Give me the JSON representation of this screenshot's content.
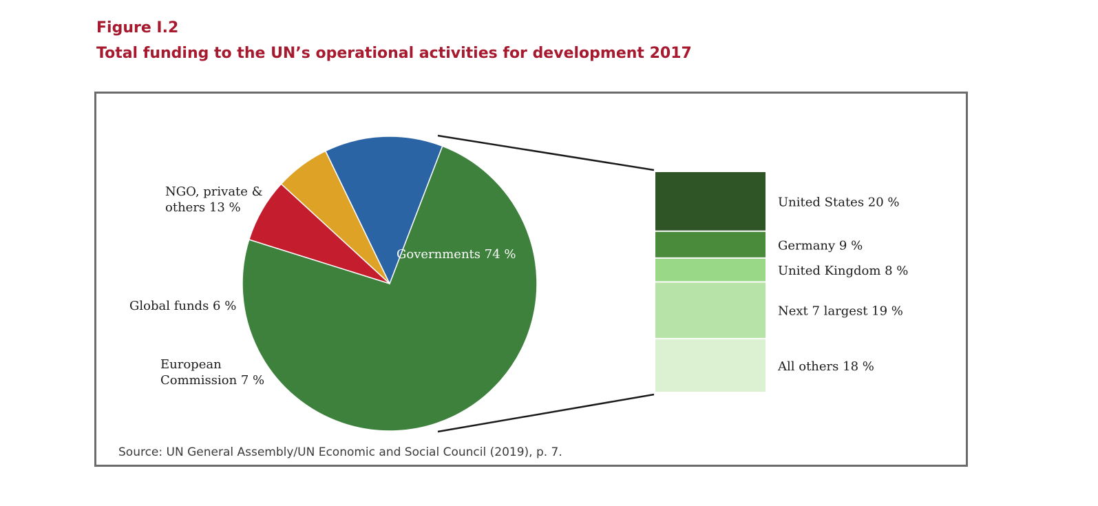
{
  "figure": {
    "label": "Figure I.2",
    "title": "Total funding to the UN’s operational activities for development 2017",
    "source": "Source: UN General Assembly/UN Economic and Social Council (2019), p. 7."
  },
  "chart_data": [
    {
      "type": "pie",
      "title": "Total funding to the UN’s operational activities for development 2017",
      "unit": "%",
      "slices": [
        {
          "name": "Governments",
          "value": 74,
          "label_lines": [
            "Governments 74 %"
          ],
          "color": "#3d813d"
        },
        {
          "name": "European Commission",
          "value": 7,
          "label_lines": [
            "European",
            "Commission 7 %"
          ],
          "color": "#c41e2e"
        },
        {
          "name": "Global funds",
          "value": 6,
          "label_lines": [
            "Global funds 6 %"
          ],
          "color": "#dea226"
        },
        {
          "name": "NGO, private & others",
          "value": 13,
          "label_lines": [
            "NGO, private &",
            "others 13 %"
          ],
          "color": "#2b64a5"
        }
      ]
    },
    {
      "type": "bar",
      "orientation": "stacked-vertical",
      "parent": "Governments",
      "unit": "%",
      "segments": [
        {
          "name": "United States",
          "value": 20,
          "label": "United States 20 %",
          "color": "#2f5425"
        },
        {
          "name": "Germany",
          "value": 9,
          "label": "Germany 9 %",
          "color": "#4a8b3b"
        },
        {
          "name": "United Kingdom",
          "value": 8,
          "label": "United Kingdom 8 %",
          "color": "#98d887"
        },
        {
          "name": "Next 7 largest",
          "value": 19,
          "label": "Next 7 largest 19 %",
          "color": "#b8e3a8"
        },
        {
          "name": "All others",
          "value": 18,
          "label": "All others 18 %",
          "color": "#dcf1d2"
        }
      ]
    }
  ]
}
